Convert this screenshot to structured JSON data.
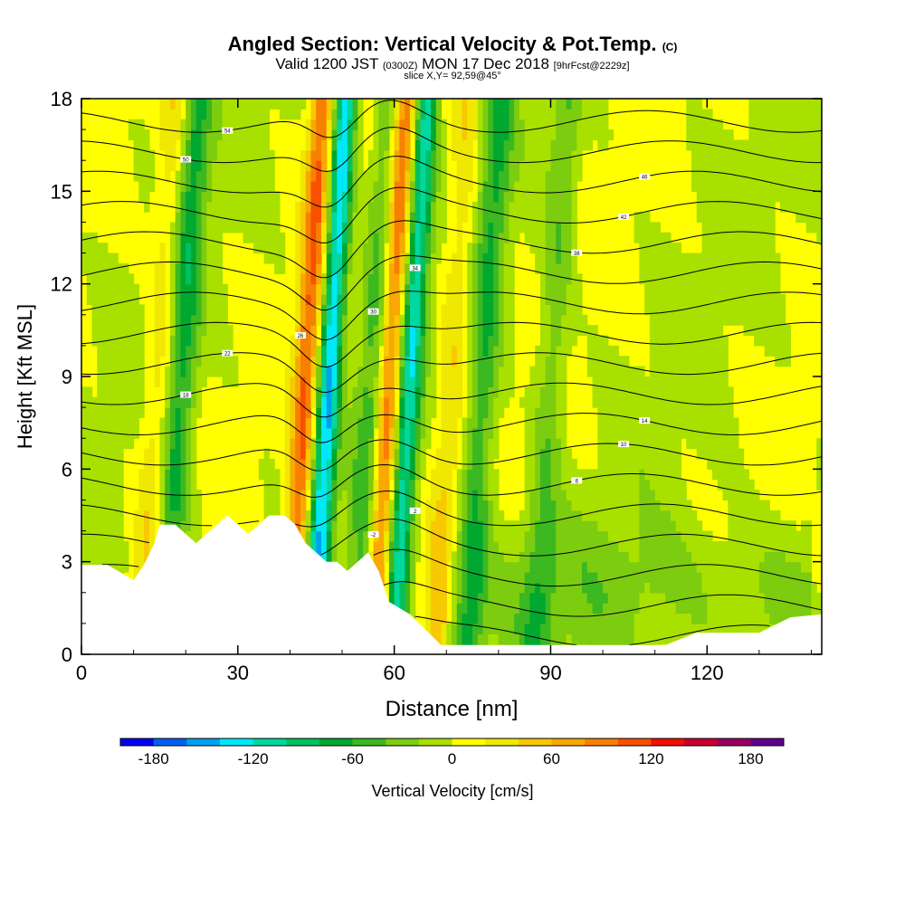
{
  "header": {
    "title": "Angled Section: Vertical Velocity & Pot.Temp.",
    "title_mark": "(C)",
    "valid_prefix": "Valid 1200 JST",
    "valid_utc": "(0300Z)",
    "valid_date": "MON 17 Dec 2018",
    "forecast_tag": "[9hrFcst@2229z]",
    "slice_info": "slice X,Y= 92,59@45°"
  },
  "chart_data": {
    "type": "heatmap",
    "xlabel": "Distance [nm]",
    "ylabel": "Height [Kft MSL]",
    "xlim": [
      0,
      142
    ],
    "ylim": [
      0,
      18
    ],
    "x_ticks": [
      "0",
      "30",
      "60",
      "90",
      "120"
    ],
    "y_ticks": [
      "0",
      "3",
      "6",
      "9",
      "12",
      "15",
      "18"
    ],
    "colorbar": {
      "label": "Vertical Velocity [cm/s]",
      "range": [
        -200,
        200
      ],
      "tick_labels": [
        "-180",
        "-120",
        "-60",
        "0",
        "60",
        "120",
        "180"
      ],
      "colors": [
        "#0000f0",
        "#0060f0",
        "#00a0f0",
        "#00e8f8",
        "#00d8a0",
        "#00c060",
        "#00a830",
        "#3cb820",
        "#7ccc10",
        "#a8e000",
        "#ffff00",
        "#f0e800",
        "#f8c800",
        "#f8a800",
        "#f88000",
        "#f85000",
        "#f01000",
        "#c80030",
        "#980060",
        "#600090"
      ]
    },
    "terrain_kft": [
      [
        0,
        2.9
      ],
      [
        5,
        2.9
      ],
      [
        8,
        2.6
      ],
      [
        10,
        2.4
      ],
      [
        12,
        2.9
      ],
      [
        14,
        3.6
      ],
      [
        15,
        4.2
      ],
      [
        18,
        4.2
      ],
      [
        20,
        3.9
      ],
      [
        22,
        3.6
      ],
      [
        24,
        3.9
      ],
      [
        26,
        4.2
      ],
      [
        28,
        4.5
      ],
      [
        30,
        4.2
      ],
      [
        32,
        3.9
      ],
      [
        34,
        4.2
      ],
      [
        36,
        4.5
      ],
      [
        39,
        4.5
      ],
      [
        41,
        4.2
      ],
      [
        43,
        3.6
      ],
      [
        45,
        3.3
      ],
      [
        47,
        3.0
      ],
      [
        49,
        3.0
      ],
      [
        51,
        2.7
      ],
      [
        53,
        3.0
      ],
      [
        55,
        3.3
      ],
      [
        57,
        2.7
      ],
      [
        59,
        1.7
      ],
      [
        63,
        1.3
      ],
      [
        66,
        0.8
      ],
      [
        69,
        0.3
      ],
      [
        112,
        0.3
      ],
      [
        118,
        0.7
      ],
      [
        130,
        0.7
      ],
      [
        136,
        1.2
      ],
      [
        142,
        1.3
      ]
    ],
    "updraft_bands": [
      {
        "x": 18,
        "velocity": -70
      },
      {
        "x": 46.5,
        "velocity": -140
      },
      {
        "x": 55,
        "velocity": -50
      },
      {
        "x": 62,
        "velocity": -110
      },
      {
        "x": 76,
        "velocity": -60
      },
      {
        "x": 89,
        "velocity": -40
      }
    ],
    "downdraft_bands": [
      {
        "x": 14,
        "velocity": 40
      },
      {
        "x": 42,
        "velocity": 100
      },
      {
        "x": 58,
        "velocity": 110
      },
      {
        "x": 70,
        "velocity": 40
      }
    ],
    "isentrope_labels": [
      "-14",
      "-10",
      "-6",
      "-2",
      "2",
      "6",
      "10",
      "14",
      "18",
      "22",
      "26",
      "30",
      "34",
      "38",
      "42",
      "46",
      "50",
      "54"
    ]
  }
}
